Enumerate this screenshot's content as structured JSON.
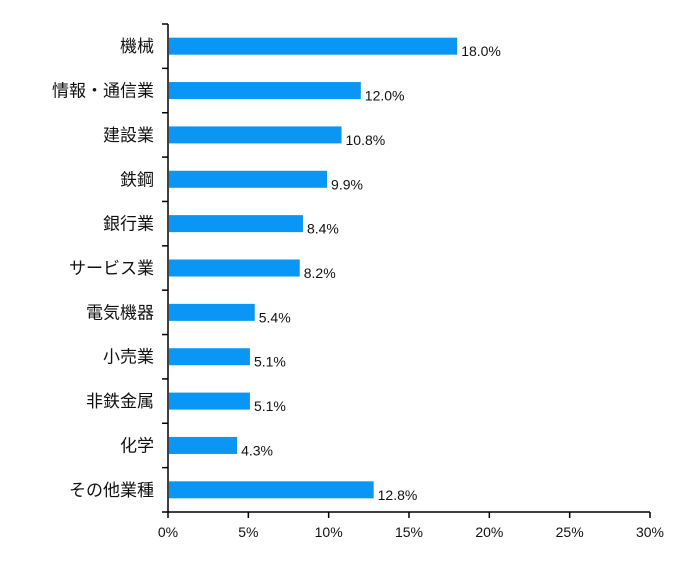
{
  "chart_data": {
    "type": "bar",
    "orientation": "horizontal",
    "categories": [
      "機械",
      "情報・通信業",
      "建設業",
      "鉄鋼",
      "銀行業",
      "サービス業",
      "電気機器",
      "小売業",
      "非鉄金属",
      "化学",
      "その他業種"
    ],
    "values": [
      18.0,
      12.0,
      10.8,
      9.9,
      8.4,
      8.2,
      5.4,
      5.1,
      5.1,
      4.3,
      12.8
    ],
    "value_labels": [
      "18.0%",
      "12.0%",
      "10.8%",
      "9.9%",
      "8.4%",
      "8.2%",
      "5.4%",
      "5.1%",
      "5.1%",
      "4.3%",
      "12.8%"
    ],
    "xlim": [
      0,
      30
    ],
    "xticks": [
      0,
      5,
      10,
      15,
      20,
      25,
      30
    ],
    "xtick_labels": [
      "0%",
      "5%",
      "10%",
      "15%",
      "20%",
      "25%",
      "30%"
    ],
    "title": "",
    "xlabel": "",
    "ylabel": "",
    "grid": false,
    "bar_color": "#0a96f5"
  }
}
